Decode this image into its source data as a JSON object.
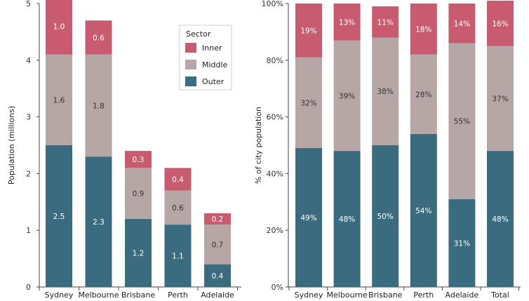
{
  "colors": {
    "inner": "#c85b6f",
    "middle": "#b6a6a6",
    "outer": "#3b6b7e",
    "axis": "#444444",
    "label_on_dark": "#ffffff",
    "label_on_light": "#333333"
  },
  "legend": {
    "title": "Sector",
    "items": [
      {
        "key": "inner",
        "label": "Inner"
      },
      {
        "key": "middle",
        "label": "Middle"
      },
      {
        "key": "outer",
        "label": "Outer"
      }
    ]
  },
  "chart_data": [
    {
      "type": "bar",
      "stacked": true,
      "ylabel": "Population (millions)",
      "ylim": [
        0,
        5
      ],
      "yticks": [
        "0",
        "1",
        "2",
        "3",
        "4",
        "5"
      ],
      "categories": [
        "Sydney",
        "Melbourne",
        "Brisbane",
        "Perth",
        "Adelaide"
      ],
      "series": [
        {
          "key": "outer",
          "name": "Outer",
          "values": [
            2.5,
            2.3,
            1.2,
            1.1,
            0.4
          ],
          "labels": [
            "2.5",
            "2.3",
            "1.2",
            "1.1",
            "0.4"
          ]
        },
        {
          "key": "middle",
          "name": "Middle",
          "values": [
            1.6,
            1.8,
            0.9,
            0.6,
            0.7
          ],
          "labels": [
            "1.6",
            "1.8",
            "0.9",
            "0.6",
            "0.7"
          ]
        },
        {
          "key": "inner",
          "name": "Inner",
          "values": [
            1.0,
            0.6,
            0.3,
            0.4,
            0.2
          ],
          "labels": [
            "1.0",
            "0.6",
            "0.3",
            "0.4",
            "0.2"
          ]
        }
      ],
      "legend_placement": "top-right"
    },
    {
      "type": "bar",
      "stacked": true,
      "ylabel": "% of city population",
      "ylim": [
        0,
        100
      ],
      "yticks": [
        "0%",
        "20%",
        "40%",
        "60%",
        "80%",
        "100%"
      ],
      "categories": [
        "Sydney",
        "Melbourne",
        "Brisbane",
        "Perth",
        "Adelaide",
        "Total"
      ],
      "series": [
        {
          "key": "outer",
          "name": "Outer",
          "values": [
            49,
            48,
            50,
            54,
            31,
            48
          ],
          "labels": [
            "49%",
            "48%",
            "50%",
            "54%",
            "31%",
            "48%"
          ]
        },
        {
          "key": "middle",
          "name": "Middle",
          "values": [
            32,
            39,
            38,
            28,
            55,
            37
          ],
          "labels": [
            "32%",
            "39%",
            "38%",
            "28%",
            "55%",
            "37%"
          ]
        },
        {
          "key": "inner",
          "name": "Inner",
          "values": [
            19,
            13,
            11,
            18,
            14,
            16
          ],
          "labels": [
            "19%",
            "13%",
            "11%",
            "18%",
            "14%",
            "16%"
          ]
        }
      ]
    }
  ]
}
